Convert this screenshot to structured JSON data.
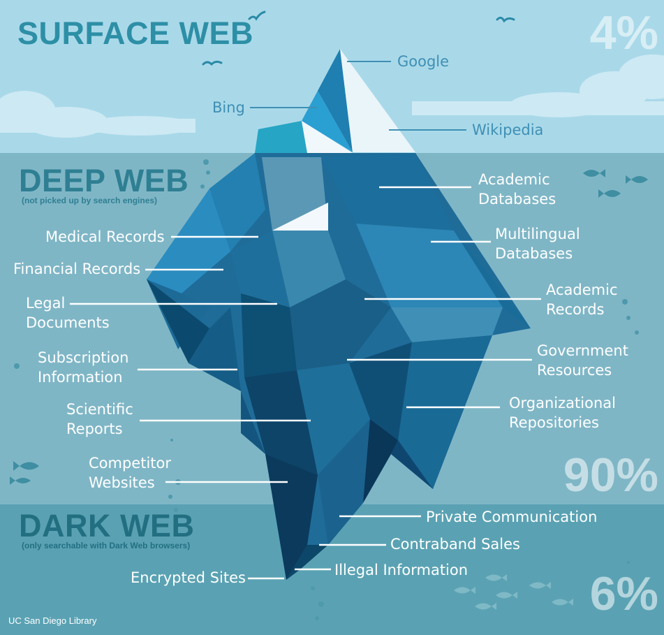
{
  "colors": {
    "sky": "#a9d9e9",
    "deep_band": "#7fb6c6",
    "dark_band": "#5aa2b3",
    "title_surface": "#2d8fa6",
    "title_deep": "#2f7f93",
    "title_dark": "#236f82",
    "callout_line_dark": "#3f8fb4",
    "callout_line_light": "#ffffff"
  },
  "sections": {
    "surface": {
      "title": "SURFACE WEB",
      "percent": "4%"
    },
    "deep": {
      "title": "DEEP WEB",
      "subtitle": "(not picked up by search engines)",
      "percent": "90%"
    },
    "dark": {
      "title": "DARK WEB",
      "subtitle": "(only searchable with Dark Web browsers)",
      "percent": "6%"
    }
  },
  "labels": {
    "google": "Google",
    "bing": "Bing",
    "wikipedia": "Wikipedia",
    "academic_databases": "Academic\nDatabases",
    "multilingual_databases": "Multilingual\nDatabases",
    "academic_records": "Academic\nRecords",
    "government_resources": "Government\nResources",
    "organizational_repositories": "Organizational\nRepositories",
    "medical_records": "Medical Records",
    "financial_records": "Financial Records",
    "legal_documents": "Legal\nDocuments",
    "subscription_information": "Subscription\nInformation",
    "scientific_reports": "Scientific\nReports",
    "competitor_websites": "Competitor\nWebsites",
    "private_communication": "Private Communication",
    "contraband_sales": "Contraband Sales",
    "illegal_information": "Illegal Information",
    "encrypted_sites": "Encrypted Sites"
  },
  "credit": "UC San Diego Library"
}
